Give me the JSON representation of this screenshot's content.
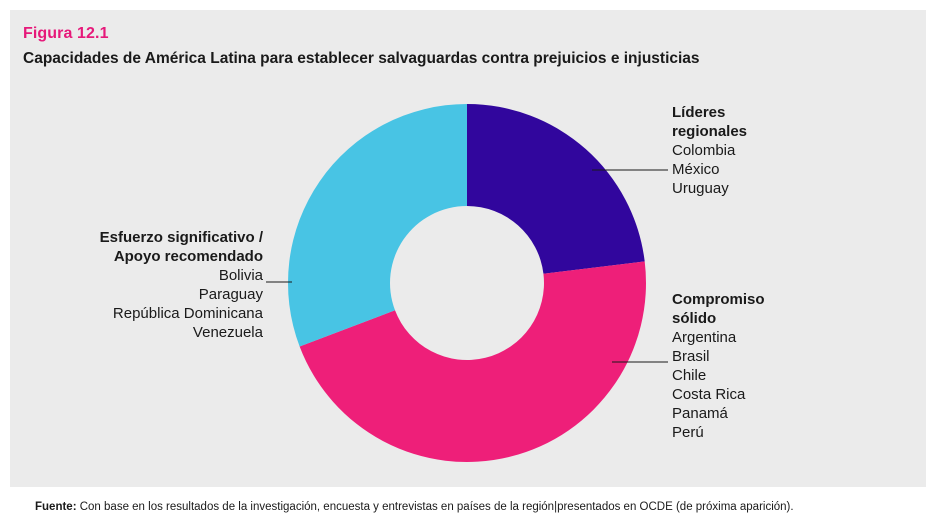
{
  "figure": {
    "label": "Figura 12.1",
    "title": "Capacidades de América Latina para establecer salvaguardas contra prejuicios e injusticias"
  },
  "chart_data": {
    "type": "pie",
    "donut": true,
    "slices": [
      {
        "head_lines": [
          "Líderes",
          "regionales"
        ],
        "countries": [
          "Colombia",
          "México",
          "Uruguay"
        ],
        "value": 3,
        "color": "#31069d"
      },
      {
        "head_lines": [
          "Compromiso",
          "sólido"
        ],
        "countries": [
          "Argentina",
          "Brasil",
          "Chile",
          "Costa Rica",
          "Panamá",
          "Perú"
        ],
        "value": 6,
        "color": "#ee1f79"
      },
      {
        "head_lines": [
          "Esfuerzo significativo /",
          "Apoyo recomendado"
        ],
        "countries": [
          "Bolivia",
          "Paraguay",
          "República Dominicana",
          "Venezuela"
        ],
        "value": 4,
        "color": "#48c4e4"
      }
    ]
  },
  "source": {
    "label": "Fuente:",
    "text": "Con base en los resultados de la investigación, encuesta y entrevistas en países de la región|presentados en OCDE (de próxima aparición)."
  }
}
